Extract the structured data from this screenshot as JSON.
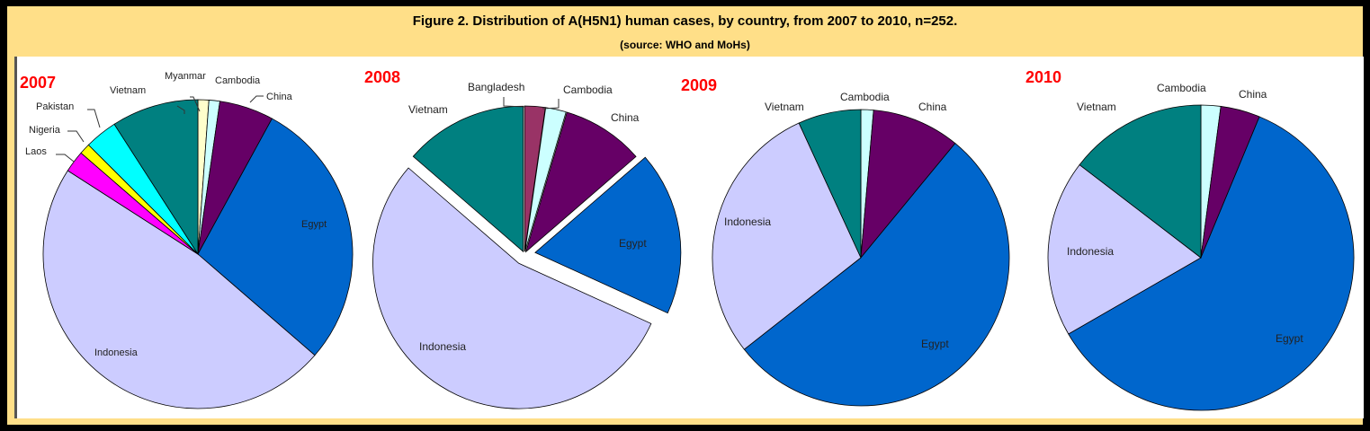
{
  "title": "Figure 2. Distribution of A(H5N1) human cases, by country, from 2007 to 2010, n=252.",
  "subtitle": "(source: WHO and MoHs)",
  "colors": {
    "Myanmar": "#FFFFCC",
    "Cambodia": "#CCFFFF",
    "China": "#660066",
    "Egypt": "#0066CC",
    "Indonesia": "#CCCCFF",
    "Laos": "#FF00FF",
    "Nigeria": "#FFFF00",
    "Pakistan": "#00FFFF",
    "Vietnam": "#008080",
    "Bangladesh": "#993366"
  },
  "chart_data": [
    {
      "type": "pie",
      "title": "2007",
      "categories": [
        "Myanmar",
        "Cambodia",
        "China",
        "Egypt",
        "Indonesia",
        "Laos",
        "Nigeria",
        "Pakistan",
        "Vietnam"
      ],
      "values": [
        1,
        1,
        5,
        25,
        42,
        2,
        1,
        3,
        8
      ]
    },
    {
      "type": "pie",
      "title": "2008",
      "categories": [
        "Bangladesh",
        "Cambodia",
        "China",
        "Egypt",
        "Indonesia",
        "Vietnam"
      ],
      "values": [
        1,
        1,
        4,
        8,
        24,
        6
      ],
      "exploded": [
        "Egypt",
        "Indonesia"
      ]
    },
    {
      "type": "pie",
      "title": "2009",
      "categories": [
        "Cambodia",
        "China",
        "Egypt",
        "Indonesia",
        "Vietnam"
      ],
      "values": [
        1,
        7,
        39,
        21,
        5
      ]
    },
    {
      "type": "pie",
      "title": "2010",
      "categories": [
        "Cambodia",
        "China",
        "Egypt",
        "Indonesia",
        "Vietnam"
      ],
      "values": [
        1,
        2,
        29,
        9,
        7
      ]
    }
  ]
}
